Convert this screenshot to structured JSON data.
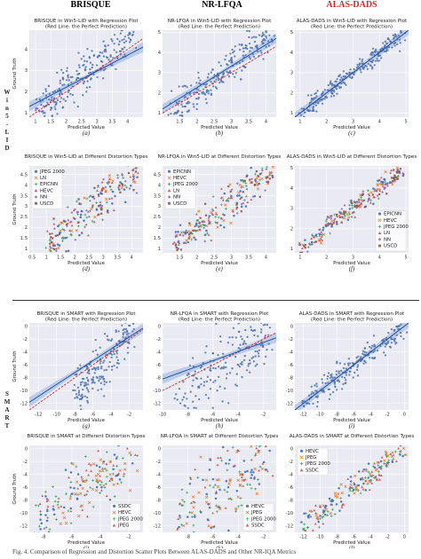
{
  "header": {
    "columns": [
      {
        "label": "BRISQUE",
        "accent": false
      },
      {
        "label": "NR-LFQA",
        "accent": false
      },
      {
        "label": "ALAS-DADS",
        "accent": true
      }
    ]
  },
  "side_labels": {
    "win5": [
      "W",
      "i",
      "n",
      "5",
      "-",
      "L",
      "I",
      "D"
    ],
    "smart": [
      "S",
      "M",
      "A",
      "R",
      "T"
    ]
  },
  "caption": "Fig. 4. Comparison of Regression and Distortion Scatter Plots Between ALAS-DADS and Other NR-IQA Metrics",
  "colors": {
    "scatter": "#4c72b0",
    "regression": "#2855a0",
    "ideal": "#d62728",
    "band": "#a9c1e6",
    "marker_palette": [
      "#3b6fc4",
      "#e9782e",
      "#3aa35a",
      "#c44e52",
      "#8c6bb1",
      "#8c564b"
    ]
  },
  "chart_data": [
    {
      "id": "a",
      "type": "scatter",
      "title": "BRISQUE in Win5-LID with Regression Plot",
      "subtitle": "(Red Line: the Perfect Prediction)",
      "xlabel": "Predicted Value",
      "ylabel": "Ground Truth",
      "panel_label": "(a)",
      "xlim": [
        0.8,
        4.5
      ],
      "ylim": [
        0.8,
        4.9
      ],
      "xticks": [
        1.0,
        1.5,
        2.0,
        2.5,
        3.0,
        3.5,
        4.0
      ],
      "yticks": [
        1,
        2,
        3,
        4
      ],
      "regression": {
        "x": [
          0.8,
          4.5
        ],
        "y": [
          1.3,
          4.1
        ]
      },
      "ideal": {
        "x": [
          0.8,
          4.5
        ],
        "y": [
          0.8,
          4.5
        ]
      },
      "band": true,
      "n_points": 230,
      "point_range": {
        "x": [
          1.0,
          4.2
        ],
        "y": [
          1.0,
          4.8
        ]
      },
      "spread": 0.8
    },
    {
      "id": "b",
      "type": "scatter",
      "title": "NR-LFQA in Win5-LID with Regression Plot",
      "subtitle": "(Red Line: the Perfect Prediction)",
      "xlabel": "Predicted Value",
      "ylabel": "",
      "panel_label": "(b)",
      "xlim": [
        1.0,
        4.3
      ],
      "ylim": [
        0.8,
        5.1
      ],
      "xticks": [
        1.5,
        2.0,
        2.5,
        3.0,
        3.5,
        4.0
      ],
      "yticks": [
        1,
        2,
        3,
        4,
        5
      ],
      "regression": {
        "x": [
          1.0,
          4.3
        ],
        "y": [
          1.2,
          4.7
        ]
      },
      "ideal": {
        "x": [
          1.0,
          4.3
        ],
        "y": [
          1.0,
          4.3
        ]
      },
      "band": true,
      "n_points": 230,
      "point_range": {
        "x": [
          1.2,
          4.2
        ],
        "y": [
          1.0,
          4.9
        ]
      },
      "spread": 0.7
    },
    {
      "id": "c",
      "type": "scatter",
      "title": "ALAS-DADS in Win5-LID with Regression Plot",
      "subtitle": "(Red Line: the Perfect Prediction)",
      "xlabel": "Predicted Value",
      "ylabel": "",
      "panel_label": "(c)",
      "xlim": [
        0.8,
        5.1
      ],
      "ylim": [
        0.8,
        5.1
      ],
      "xticks": [
        1,
        2,
        3,
        4,
        5
      ],
      "yticks": [
        1,
        2,
        3,
        4,
        5
      ],
      "regression": {
        "x": [
          0.8,
          5.1
        ],
        "y": [
          0.8,
          5.1
        ]
      },
      "ideal": {
        "x": [
          0.8,
          5.1
        ],
        "y": [
          0.8,
          5.1
        ]
      },
      "band": true,
      "n_points": 230,
      "point_range": {
        "x": [
          1.0,
          4.9
        ],
        "y": [
          1.0,
          4.9
        ]
      },
      "spread": 0.35
    },
    {
      "id": "d",
      "type": "scatter",
      "title": "BRISQUE in Win5-LID at Different Distortion Types",
      "xlabel": "Predicted Value",
      "ylabel": "Ground Truth",
      "panel_label": "(d)",
      "xlim": [
        0.4,
        4.4
      ],
      "ylim": [
        0.8,
        4.9
      ],
      "xticks": [
        0.5,
        1.0,
        1.5,
        2.0,
        2.5,
        3.0,
        3.5,
        4.0
      ],
      "yticks": [
        1.0,
        1.5,
        2.0,
        2.5,
        3.0,
        3.5,
        4.0,
        4.5
      ],
      "legend": {
        "position": "upper-left",
        "entries": [
          "JPEG 2000",
          "LN",
          "EPICNN",
          "HEVC",
          "NN",
          "USCD"
        ]
      },
      "n_points": 220,
      "point_range": {
        "x": [
          1.0,
          4.2
        ],
        "y": [
          1.0,
          4.8
        ]
      },
      "spread": 0.8
    },
    {
      "id": "e",
      "type": "scatter",
      "title": "NR-LFQA in Win5-LID at Different Distortion Types",
      "xlabel": "Predicted Value",
      "ylabel": "",
      "panel_label": "(e)",
      "xlim": [
        1.0,
        4.3
      ],
      "ylim": [
        0.8,
        4.9
      ],
      "xticks": [
        1.5,
        2.0,
        2.5,
        3.0,
        3.5,
        4.0
      ],
      "yticks": [
        1.0,
        1.5,
        2.0,
        2.5,
        3.0,
        3.5,
        4.0,
        4.5
      ],
      "legend": {
        "position": "upper-left",
        "entries": [
          "EPICNN",
          "HEVC",
          "JPEG 2000",
          "LN",
          "NN",
          "USCD"
        ]
      },
      "n_points": 220,
      "point_range": {
        "x": [
          1.3,
          4.2
        ],
        "y": [
          1.0,
          4.8
        ]
      },
      "spread": 0.7
    },
    {
      "id": "f",
      "type": "scatter",
      "title": "ALAS-DADS in Win5-LID at Different Distortion Types",
      "xlabel": "Predicted Value",
      "ylabel": "",
      "panel_label": "(f)",
      "xlim": [
        0.8,
        5.1
      ],
      "ylim": [
        0.8,
        5.1
      ],
      "xticks": [
        1,
        2,
        3,
        4,
        5
      ],
      "yticks": [
        1,
        2,
        3,
        4,
        5
      ],
      "legend": {
        "position": "lower-right",
        "entries": [
          "EPICNN",
          "HEVC",
          "JPEG 2000",
          "LN",
          "NN",
          "USCD"
        ]
      },
      "n_points": 220,
      "point_range": {
        "x": [
          1.0,
          4.9
        ],
        "y": [
          1.0,
          4.9
        ]
      },
      "spread": 0.35
    },
    {
      "id": "g",
      "type": "scatter",
      "title": "BRISQUE in SMART with Regression Plot",
      "subtitle": "(Red Line: the Perfect Prediction)",
      "xlabel": "Predicted Value",
      "ylabel": "Ground Truth",
      "panel_label": "(g)",
      "xlim": [
        -13,
        -0.5
      ],
      "ylim": [
        -13,
        0.5
      ],
      "xticks": [
        -12,
        -10,
        -8,
        -6,
        -4,
        -2
      ],
      "yticks": [
        -12,
        -10,
        -8,
        -6,
        -4,
        -2,
        0
      ],
      "regression": {
        "x": [
          -13,
          -0.5
        ],
        "y": [
          -11.8,
          -0.3
        ]
      },
      "ideal": {
        "x": [
          -13,
          -0.5
        ],
        "y": [
          -13,
          -0.5
        ]
      },
      "band": true,
      "n_points": 200,
      "point_range": {
        "x": [
          -8,
          -1.5
        ],
        "y": [
          -11,
          0
        ]
      },
      "spread": 1.2
    },
    {
      "id": "h",
      "type": "scatter",
      "title": "NR-LFQA in SMART with Regression Plot",
      "subtitle": "(Red Line: the Perfect Prediction)",
      "xlabel": "Predicted Value",
      "ylabel": "",
      "panel_label": "(h)",
      "xlim": [
        -10,
        -1
      ],
      "ylim": [
        -13,
        0.5
      ],
      "xticks": [
        -10,
        -8,
        -6,
        -4,
        -2
      ],
      "yticks": [
        -12,
        -10,
        -8,
        -6,
        -4,
        -2,
        0
      ],
      "regression": {
        "x": [
          -10,
          -1
        ],
        "y": [
          -8.2,
          -1.8
        ]
      },
      "ideal": {
        "x": [
          -10,
          -1
        ],
        "y": [
          -10,
          -1
        ]
      },
      "band": true,
      "n_points": 200,
      "point_range": {
        "x": [
          -9,
          -1.5
        ],
        "y": [
          -12,
          0
        ]
      },
      "spread": 1.6
    },
    {
      "id": "i",
      "type": "scatter",
      "title": "ALAS-DADS in SMART with Regression Plot",
      "subtitle": "(Red Line: the Perfect Prediction)",
      "xlabel": "Predicted Value",
      "ylabel": "",
      "panel_label": "(i)",
      "xlim": [
        -13,
        0.5
      ],
      "ylim": [
        -13,
        0.5
      ],
      "xticks": [
        -12,
        -10,
        -8,
        -6,
        -4,
        -2,
        0
      ],
      "yticks": [
        -12,
        -10,
        -8,
        -6,
        -4,
        -2,
        0
      ],
      "regression": {
        "x": [
          -13,
          0.5
        ],
        "y": [
          -13,
          0.5
        ]
      },
      "ideal": {
        "x": [
          -13,
          0.5
        ],
        "y": [
          -13,
          0.5
        ]
      },
      "band": true,
      "n_points": 200,
      "point_range": {
        "x": [
          -12,
          0
        ],
        "y": [
          -12,
          0
        ]
      },
      "spread": 0.5
    },
    {
      "id": "j",
      "type": "scatter",
      "title": "BRISQUE in SMART at Different Distortion Types",
      "xlabel": "Predicted Value",
      "ylabel": "Ground Truth",
      "panel_label": "(j)",
      "xlim": [
        -9,
        -1
      ],
      "ylim": [
        -13,
        0.5
      ],
      "xticks": [
        -8,
        -6,
        -4,
        -2
      ],
      "yticks": [
        -12,
        -10,
        -8,
        -6,
        -4,
        -2,
        0
      ],
      "legend": {
        "position": "lower-right",
        "entries": [
          "SSDC",
          "HEVC",
          "JPEG 2000",
          "JPEG"
        ]
      },
      "n_points": 190,
      "point_range": {
        "x": [
          -8.5,
          -1.5
        ],
        "y": [
          -12,
          0
        ]
      },
      "spread": 1.3
    },
    {
      "id": "k",
      "type": "scatter",
      "title": "NR-LFQA in SMART at Different Distortion Types",
      "xlabel": "Predicted Value",
      "ylabel": "",
      "panel_label": "(k)",
      "xlim": [
        -10,
        -1
      ],
      "ylim": [
        -13,
        0.5
      ],
      "xticks": [
        -8,
        -6,
        -4,
        -2
      ],
      "yticks": [
        -12,
        -10,
        -8,
        -6,
        -4,
        -2,
        0
      ],
      "legend": {
        "position": "lower-right",
        "entries": [
          "HEVC",
          "JPEG",
          "JPEG 2000",
          "SSDC"
        ]
      },
      "n_points": 190,
      "point_range": {
        "x": [
          -9,
          -1.5
        ],
        "y": [
          -12,
          0
        ]
      },
      "spread": 1.6
    },
    {
      "id": "l",
      "type": "scatter",
      "title": "ALAS-DADS in SMART at Different Distortion Types",
      "xlabel": "Predicted Value",
      "ylabel": "",
      "panel_label": "(l)",
      "xlim": [
        -13,
        0.5
      ],
      "ylim": [
        -13,
        0.5
      ],
      "xticks": [
        -12,
        -10,
        -8,
        -6,
        -4,
        -2,
        0
      ],
      "yticks": [
        -12,
        -10,
        -8,
        -6,
        -4,
        -2,
        0
      ],
      "legend": {
        "position": "upper-left",
        "entries": [
          "HEVC",
          "JPEG",
          "JPEG 2000",
          "SSDC"
        ]
      },
      "n_points": 190,
      "point_range": {
        "x": [
          -12,
          0
        ],
        "y": [
          -12,
          0
        ]
      },
      "spread": 0.5
    }
  ]
}
